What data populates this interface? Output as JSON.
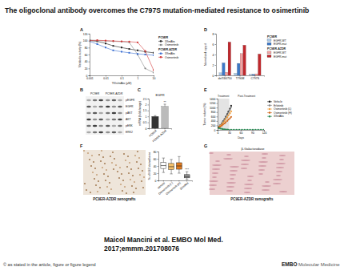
{
  "title": "The oligoclonal antibody overcomes the C797S mutation-mediated resistance to osimertinib",
  "panels": {
    "B": {
      "label": "B",
      "columns": [
        "PC9ER",
        "PC9ER-AZDR"
      ],
      "rows": [
        "pEGFR",
        "EGFR",
        "pAKT",
        "AKT",
        "pERK",
        "ERK2"
      ]
    },
    "F": {
      "caption": "PC9ER-AZDR xenografts"
    },
    "G": {
      "label": "G",
      "title": "β-Galactosidase",
      "caption": "PC9ER-AZDR xenografts"
    }
  },
  "chart_data": [
    {
      "label": "A",
      "type": "line",
      "log": "x",
      "x": [
        0.001,
        0.003,
        0.01,
        0.03,
        0.1,
        0.3,
        1,
        3,
        10
      ],
      "xlim": [
        0.001,
        10
      ],
      "xticks": [
        0.001,
        0.01,
        0.1,
        1,
        10
      ],
      "ylim": [
        0,
        120
      ],
      "yticks": [
        0,
        20,
        40,
        60,
        80,
        100,
        120
      ],
      "x_label": "TKIs/mAbs (µM)",
      "y_label": "Metabolic activity (%)",
      "series": [
        {
          "name": "3XmAbs",
          "group": "PC9ER",
          "color": "#222222",
          "marker": "square",
          "values": [
            100,
            98,
            92,
            85,
            80,
            76,
            72,
            68,
            65
          ]
        },
        {
          "name": "Osimertinib",
          "group": "PC9ER",
          "color": "#888888",
          "marker": "circle",
          "values": [
            102,
            100,
            99,
            98,
            97,
            95,
            60,
            20,
            8
          ]
        },
        {
          "name": "3XmAbs",
          "group": "PC9ER-AZDR",
          "color": "#3b6fd1",
          "marker": "square",
          "values": [
            98,
            90,
            80,
            72,
            68,
            65,
            62,
            60,
            58
          ]
        },
        {
          "name": "Osimertinib",
          "group": "PC9ER-AZDR",
          "color": "#d33a3a",
          "marker": "circle",
          "values": [
            100,
            101,
            100,
            99,
            98,
            97,
            95,
            70,
            15
          ]
        }
      ]
    },
    {
      "label": "C",
      "type": "bar",
      "title": "EGFR",
      "categories": [
        "PC9ER",
        "PC9ER-AZDR"
      ],
      "values": [
        1,
        1.85
      ],
      "errors": [
        0.07,
        0.18
      ],
      "colors": [
        "#333333",
        "#bbbbbb"
      ],
      "ylim": [
        0,
        2.5
      ],
      "yticks": [
        0,
        0.5,
        1,
        1.5,
        2,
        2.5
      ],
      "y_label": "mRNA (fold change)",
      "annotation": "**"
    },
    {
      "label": "D",
      "type": "bar",
      "categories": [
        "del746/750",
        "T790M",
        "C797S"
      ],
      "ylim": [
        0,
        8
      ],
      "yticks": [
        0,
        2,
        4,
        6,
        8
      ],
      "y_label": "Normalized copy #",
      "series": [
        {
          "name": "EGFR-WT",
          "group": "PC9ER",
          "color": "#a9c8e8",
          "values": [
            0.5,
            0.4,
            0.2
          ]
        },
        {
          "name": "EGFR-mut",
          "group": "PC9ER",
          "color": "#3c78c8",
          "values": [
            2.4,
            2.3,
            0.2
          ]
        },
        {
          "name": "EGFR-WT",
          "group": "PC9ER-AZDR",
          "color": "#f4a3a3",
          "values": [
            0.6,
            4.2,
            0.3
          ]
        },
        {
          "name": "EGFR-mut",
          "group": "PC9ER-AZDR",
          "color": "#c0282d",
          "values": [
            6.4,
            5.8,
            4.1
          ]
        }
      ]
    },
    {
      "label": "E",
      "type": "line",
      "xlim": [
        0,
        120
      ],
      "xticks": [
        0,
        30,
        60,
        90,
        120
      ],
      "ylim": [
        0,
        1400
      ],
      "yticks": [
        0,
        200,
        400,
        600,
        800,
        1000,
        1200,
        1400
      ],
      "x_label": "Days",
      "y_label": "Tumor volume (%)",
      "treatment_days": [
        0,
        30
      ],
      "annotations": [
        "Treatment",
        "Post-Treatment"
      ],
      "series": [
        {
          "name": "Vehicle",
          "color": "#222222",
          "marker": "circle",
          "x": [
            0,
            4,
            7,
            11,
            14,
            18,
            21,
            25,
            28,
            32,
            35
          ],
          "values": [
            100,
            150,
            210,
            290,
            380,
            480,
            590,
            700,
            820,
            950,
            1080
          ]
        },
        {
          "name": "Erlotinib",
          "color": "#888888",
          "marker": "circle",
          "x": [
            0,
            4,
            7,
            11,
            14,
            18,
            21,
            25,
            28,
            32,
            35
          ],
          "values": [
            100,
            140,
            200,
            270,
            350,
            450,
            560,
            660,
            780,
            900,
            1020
          ]
        },
        {
          "name": "Osimertinib (L)",
          "color": "#f0a040",
          "marker": "circle",
          "x": [
            0,
            4,
            7,
            11,
            14,
            18,
            21,
            25,
            28,
            32,
            35
          ],
          "values": [
            100,
            130,
            180,
            240,
            310,
            390,
            480,
            560,
            650,
            740,
            830
          ]
        },
        {
          "name": "Osimertinib (H)",
          "color": "#d2691e",
          "marker": "circle",
          "x": [
            0,
            4,
            7,
            11,
            14,
            18,
            21,
            25,
            28,
            32,
            35
          ],
          "values": [
            100,
            120,
            150,
            190,
            240,
            290,
            340,
            400,
            460,
            520,
            580
          ]
        },
        {
          "name": "3XmAbs",
          "color": "#2e8b57",
          "marker": "circle",
          "x": [
            0,
            4,
            7,
            11,
            14,
            18,
            21,
            25,
            28,
            35,
            42,
            49,
            56,
            63,
            70,
            77,
            84,
            91,
            98,
            105,
            112,
            119
          ],
          "values": [
            100,
            80,
            60,
            45,
            30,
            20,
            15,
            10,
            8,
            6,
            5,
            5,
            4,
            4,
            4,
            4,
            4,
            4,
            4,
            4,
            4,
            4
          ]
        }
      ]
    },
    {
      "label": "F",
      "type": "box",
      "categories": [
        "Vehicle",
        "Osimertinib (L)",
        "Osimertinib (H)",
        "3XmAbs"
      ],
      "colors": [
        "#ffffff",
        "#f5c16c",
        "#e07b20",
        "#999999"
      ],
      "min": [
        22,
        18,
        20,
        3
      ],
      "q1": [
        33,
        30,
        31,
        7
      ],
      "median": [
        41,
        38,
        40,
        11
      ],
      "q3": [
        50,
        47,
        49,
        16
      ],
      "max": [
        62,
        58,
        66,
        24
      ],
      "ylim": [
        0,
        80
      ],
      "yticks": [
        0,
        20,
        40,
        60,
        80
      ],
      "y_label": "% of KI67 stained area",
      "annotation": "***"
    }
  ],
  "citation": [
    "Maicol Mancini et al. EMBO Mol Med.",
    "2017;emmm.201708076"
  ],
  "copyright": "© as stated in the article, figure or figure legend",
  "journal": {
    "brand": "EMBO",
    "name": "Molecular Medicine"
  }
}
